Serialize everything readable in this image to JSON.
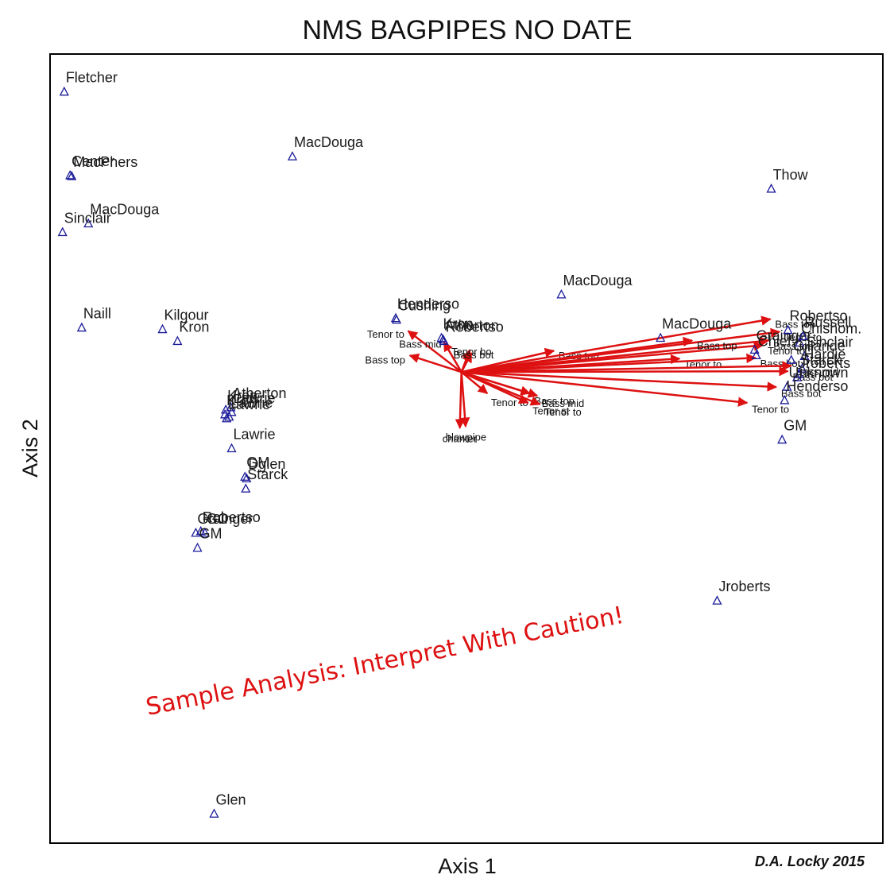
{
  "chart_data": {
    "type": "scatter",
    "title": "NMS BAGPIPES NO DATE",
    "xlabel": "Axis 1",
    "ylabel": "Axis 2",
    "xlim": [
      0,
      100
    ],
    "ylim": [
      0,
      100
    ],
    "grid": false,
    "legend": "none",
    "point_marker": "triangle",
    "point_color": "#1a1a99",
    "vector_color": "#dd1111",
    "annotation": "Sample Analysis: Interpret With Caution!",
    "annotation_color": "#dd1111",
    "credit": "D.A. Locky 2015",
    "vector_origin": [
      49.4,
      59.7
    ],
    "points": [
      {
        "label": "Fletcher",
        "x": 1.7,
        "y": 95.2
      },
      {
        "label": "Center",
        "x": 2.4,
        "y": 84.6
      },
      {
        "label": "MacPhers",
        "x": 2.6,
        "y": 84.5
      },
      {
        "label": "MacDouga",
        "x": 4.6,
        "y": 78.5
      },
      {
        "label": "Sinclair",
        "x": 1.5,
        "y": 77.4
      },
      {
        "label": "MacDouga",
        "x": 29.1,
        "y": 87.0
      },
      {
        "label": "Thow",
        "x": 86.6,
        "y": 82.9
      },
      {
        "label": "Naill",
        "x": 3.8,
        "y": 65.3
      },
      {
        "label": "Kilgour",
        "x": 13.5,
        "y": 65.1
      },
      {
        "label": "Kron",
        "x": 15.3,
        "y": 63.6
      },
      {
        "label": "Henderso",
        "x": 41.5,
        "y": 66.5
      },
      {
        "label": "Cushing",
        "x": 41.6,
        "y": 66.3
      },
      {
        "label": "Kron",
        "x": 47.0,
        "y": 64.0
      },
      {
        "label": "Atherton",
        "x": 47.2,
        "y": 63.8
      },
      {
        "label": "Robertso",
        "x": 47.3,
        "y": 63.6
      },
      {
        "label": "MacDouga",
        "x": 61.4,
        "y": 69.5
      },
      {
        "label": "MacDouga",
        "x": 73.3,
        "y": 64.0
      },
      {
        "label": "Grainger",
        "x": 84.6,
        "y": 62.5
      },
      {
        "label": "Robertso",
        "x": 88.6,
        "y": 65.0
      },
      {
        "label": "Chief",
        "x": 84.8,
        "y": 61.8
      },
      {
        "label": "Russell",
        "x": 90.4,
        "y": 64.2
      },
      {
        "label": "Chishom.",
        "x": 90.0,
        "y": 63.4
      },
      {
        "label": "Sinclair",
        "x": 90.6,
        "y": 61.7
      },
      {
        "label": "Gillande",
        "x": 89.0,
        "y": 61.2
      },
      {
        "label": "Hardie",
        "x": 90.3,
        "y": 60.1
      },
      {
        "label": "Starck",
        "x": 89.9,
        "y": 59.4
      },
      {
        "label": "Jroberts",
        "x": 89.7,
        "y": 59.0
      },
      {
        "label": "Unknown",
        "x": 88.5,
        "y": 57.8
      },
      {
        "label": "Henderso",
        "x": 88.2,
        "y": 56.1
      },
      {
        "label": "GM",
        "x": 87.9,
        "y": 51.1
      },
      {
        "label": "Atherton",
        "x": 21.7,
        "y": 55.2
      },
      {
        "label": "Kron",
        "x": 21.1,
        "y": 54.9
      },
      {
        "label": "Lawrie",
        "x": 21.8,
        "y": 54.6
      },
      {
        "label": "Kron",
        "x": 21.0,
        "y": 54.3
      },
      {
        "label": "Lawrie",
        "x": 21.5,
        "y": 54.0
      },
      {
        "label": "Lawrie",
        "x": 21.2,
        "y": 53.8
      },
      {
        "label": "Lawrie",
        "x": 21.8,
        "y": 50.0
      },
      {
        "label": "GM",
        "x": 23.4,
        "y": 46.4
      },
      {
        "label": "Dglen",
        "x": 23.6,
        "y": 46.2
      },
      {
        "label": "Starck",
        "x": 23.5,
        "y": 44.9
      },
      {
        "label": "Robertso",
        "x": 18.1,
        "y": 39.5
      },
      {
        "label": "GC",
        "x": 18.6,
        "y": 39.3
      },
      {
        "label": "Grainger",
        "x": 17.5,
        "y": 39.3
      },
      {
        "label": "GM",
        "x": 17.7,
        "y": 37.4
      },
      {
        "label": "Jroberts",
        "x": 80.1,
        "y": 30.7
      },
      {
        "label": "Glen",
        "x": 19.7,
        "y": 3.7
      }
    ],
    "vectors": [
      {
        "label": "Tenor to",
        "x": 43.0,
        "y": 64.9
      },
      {
        "label": "Bass top",
        "x": 43.2,
        "y": 61.8
      },
      {
        "label": "Bass mid",
        "x": 47.3,
        "y": 63.5
      },
      {
        "label": "Tenor bo",
        "x": 50.4,
        "y": 62.5
      },
      {
        "label": "Bass bot",
        "x": 50.6,
        "y": 62.1
      },
      {
        "label": "Bass top",
        "x": 60.5,
        "y": 62.4
      },
      {
        "label": "chanter",
        "x": 49.2,
        "y": 52.6
      },
      {
        "label": "blowpipe",
        "x": 49.9,
        "y": 52.8
      },
      {
        "label": "Tenor to",
        "x": 52.5,
        "y": 57.0
      },
      {
        "label": "Bass top",
        "x": 57.6,
        "y": 57.0
      },
      {
        "label": "Bass mid",
        "x": 58.5,
        "y": 56.7
      },
      {
        "label": "Tenor st",
        "x": 57.4,
        "y": 55.8
      },
      {
        "label": "Tenor to",
        "x": 58.8,
        "y": 55.6
      },
      {
        "label": "Tenor to",
        "x": 83.7,
        "y": 55.8
      },
      {
        "label": "Bass top",
        "x": 86.5,
        "y": 66.4
      },
      {
        "label": "Tenor to",
        "x": 87.6,
        "y": 64.8
      },
      {
        "label": "Bass top",
        "x": 86.3,
        "y": 63.7
      },
      {
        "label": "Tenor to",
        "x": 85.6,
        "y": 63.1
      },
      {
        "label": "Bass top",
        "x": 77.1,
        "y": 63.7
      },
      {
        "label": "Tenor to",
        "x": 75.6,
        "y": 61.4
      },
      {
        "label": "Bass bot",
        "x": 84.7,
        "y": 61.5
      },
      {
        "label": "Bass mid",
        "x": 89.0,
        "y": 60.5
      },
      {
        "label": "Bass bot",
        "x": 88.6,
        "y": 59.8
      },
      {
        "label": "Bass bot",
        "x": 87.2,
        "y": 57.8
      }
    ]
  }
}
